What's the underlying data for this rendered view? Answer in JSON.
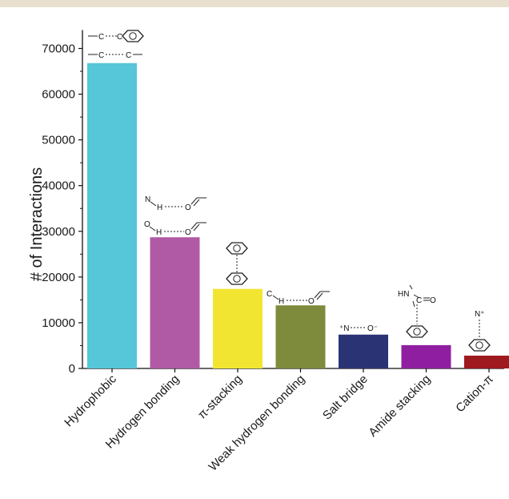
{
  "chart_data": {
    "type": "bar",
    "ylabel": "# of Interactions",
    "xlabel": "",
    "ylim": [
      0,
      75000
    ],
    "yticks": [
      0,
      10000,
      20000,
      30000,
      40000,
      50000,
      60000,
      70000
    ],
    "grid": false,
    "categories": [
      "Hydrophobic",
      "Hydrogen bonding",
      "π-stacking",
      "Weak hydrogen bonding",
      "Salt bridge",
      "Amide stacking",
      "Cation-π"
    ],
    "values": [
      66800,
      28700,
      17400,
      13800,
      7400,
      5100,
      2800
    ],
    "colors": [
      "#56c6d9",
      "#b05aa6",
      "#f2e532",
      "#7e8a3c",
      "#2a3475",
      "#8f1fa0",
      "#9e1a1e"
    ]
  }
}
